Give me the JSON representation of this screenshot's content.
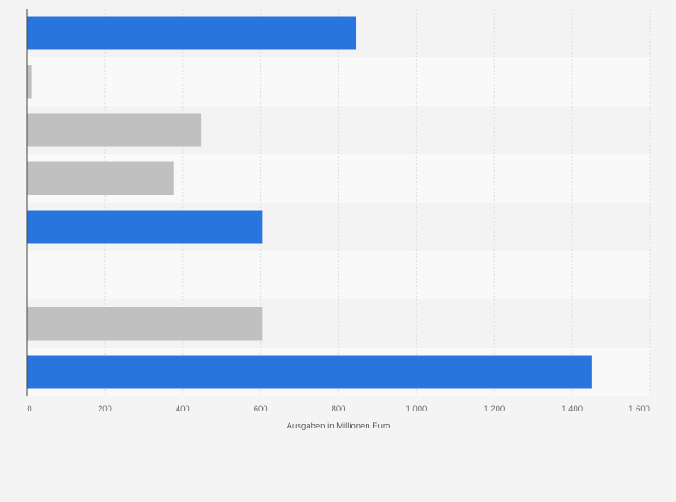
{
  "chart_data": {
    "type": "bar",
    "orientation": "horizontal",
    "categories": [
      "",
      "",
      "",
      "",
      "",
      "",
      "",
      ""
    ],
    "values": [
      845,
      13,
      447,
      377,
      604,
      null,
      604,
      1450
    ],
    "bar_colors": [
      "#2876dd",
      "#c0c0c0",
      "#c0c0c0",
      "#c0c0c0",
      "#2876dd",
      null,
      "#c0c0c0",
      "#2876dd"
    ],
    "title": "",
    "xlabel": "Ausgaben in Millionen Euro",
    "ylabel": "",
    "xlim": [
      0,
      1600
    ],
    "xticks": [
      0,
      200,
      400,
      600,
      800,
      1000,
      1200,
      1400,
      1600
    ],
    "xtick_labels": [
      "0",
      "200",
      "400",
      "600",
      "800",
      "1.000",
      "1.200",
      "1.400",
      "1.600"
    ],
    "grid": true,
    "legend": "none",
    "colors": {
      "background": "#f4f4f4",
      "band_light": "#f9f9f9",
      "band_dark": "#f3f3f3",
      "grid": "#dddddd",
      "axis": "#444444"
    }
  }
}
